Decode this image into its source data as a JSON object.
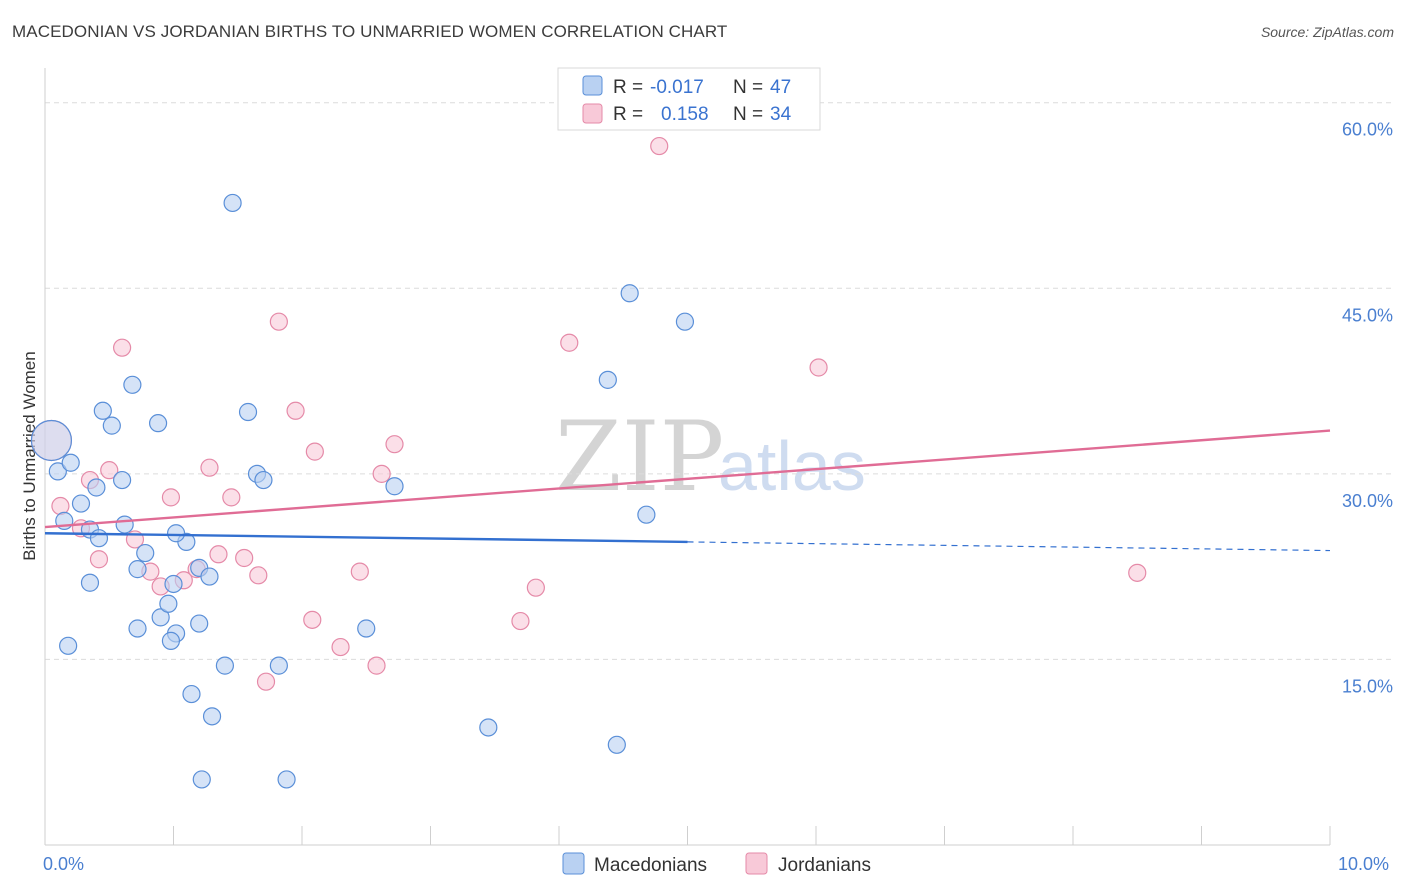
{
  "header": {
    "title": "MACEDONIAN VS JORDANIAN BIRTHS TO UNMARRIED WOMEN CORRELATION CHART",
    "source": "Source: ZipAtlas.com"
  },
  "watermark": {
    "zip": "ZIP",
    "atlas": "atlas"
  },
  "legend": {
    "macedonians": {
      "r_label": "R =",
      "r_value": "-0.017",
      "n_label": "N =",
      "n_value": "47"
    },
    "jordanians": {
      "r_label": "R =",
      "r_value": "0.158",
      "n_label": "N =",
      "n_value": "34"
    }
  },
  "colors": {
    "macedonians_fill": "#b9d1f2",
    "macedonians_stroke": "#5a8fd8",
    "macedonians_line": "#3370d0",
    "jordanians_fill": "#f8c9d8",
    "jordanians_stroke": "#e58aa8",
    "jordanians_line": "#e06c95",
    "tick_text": "#4a7fd0"
  },
  "chart_data": {
    "type": "scatter",
    "title": "MACEDONIAN VS JORDANIAN BIRTHS TO UNMARRIED WOMEN CORRELATION CHART",
    "xlabel": "",
    "ylabel": "Births to Unmarried Women",
    "xlim": [
      0,
      10
    ],
    "ylim": [
      0,
      62
    ],
    "x_tick_labels": [
      "0.0%",
      "10.0%"
    ],
    "y_ticks": [
      15,
      30,
      45,
      60
    ],
    "y_tick_labels": [
      "15.0%",
      "30.0%",
      "45.0%",
      "60.0%"
    ],
    "grid": true,
    "legend_position": "bottom",
    "series": [
      {
        "name": "Macedonians",
        "trend": {
          "x": [
            0,
            5.0
          ],
          "y": [
            25.2,
            24.5
          ],
          "dashed_to": [
            10.0,
            23.8
          ]
        },
        "points": [
          {
            "x": 0.05,
            "y": 32.7,
            "big": true
          },
          {
            "x": 0.1,
            "y": 30.2
          },
          {
            "x": 0.2,
            "y": 30.9
          },
          {
            "x": 0.28,
            "y": 27.6
          },
          {
            "x": 0.15,
            "y": 26.2
          },
          {
            "x": 0.4,
            "y": 28.9
          },
          {
            "x": 0.45,
            "y": 35.1
          },
          {
            "x": 0.52,
            "y": 33.9
          },
          {
            "x": 0.35,
            "y": 25.5
          },
          {
            "x": 0.42,
            "y": 24.8
          },
          {
            "x": 0.62,
            "y": 25.9
          },
          {
            "x": 0.68,
            "y": 37.2
          },
          {
            "x": 0.88,
            "y": 34.1
          },
          {
            "x": 0.78,
            "y": 23.6
          },
          {
            "x": 0.72,
            "y": 22.3
          },
          {
            "x": 0.9,
            "y": 18.4
          },
          {
            "x": 0.96,
            "y": 19.5
          },
          {
            "x": 1.02,
            "y": 17.1
          },
          {
            "x": 1.1,
            "y": 24.5
          },
          {
            "x": 1.0,
            "y": 21.1
          },
          {
            "x": 1.2,
            "y": 22.4
          },
          {
            "x": 1.2,
            "y": 17.9
          },
          {
            "x": 0.98,
            "y": 16.5
          },
          {
            "x": 1.14,
            "y": 12.2
          },
          {
            "x": 1.28,
            "y": 21.7
          },
          {
            "x": 1.4,
            "y": 14.5
          },
          {
            "x": 1.3,
            "y": 10.4
          },
          {
            "x": 1.46,
            "y": 51.9
          },
          {
            "x": 1.58,
            "y": 35.0
          },
          {
            "x": 1.65,
            "y": 30.0
          },
          {
            "x": 1.7,
            "y": 29.5
          },
          {
            "x": 1.82,
            "y": 14.5
          },
          {
            "x": 1.22,
            "y": 5.3
          },
          {
            "x": 1.88,
            "y": 5.3
          },
          {
            "x": 0.72,
            "y": 17.5
          },
          {
            "x": 0.35,
            "y": 21.2
          },
          {
            "x": 0.18,
            "y": 16.1
          },
          {
            "x": 1.02,
            "y": 25.2
          },
          {
            "x": 2.5,
            "y": 17.5
          },
          {
            "x": 2.72,
            "y": 29.0
          },
          {
            "x": 3.45,
            "y": 9.5
          },
          {
            "x": 4.38,
            "y": 37.6
          },
          {
            "x": 4.68,
            "y": 26.7
          },
          {
            "x": 4.98,
            "y": 42.3
          },
          {
            "x": 4.55,
            "y": 44.6
          },
          {
            "x": 4.45,
            "y": 8.1
          },
          {
            "x": 0.6,
            "y": 29.5
          }
        ]
      },
      {
        "name": "Jordanians",
        "trend": {
          "x": [
            0,
            10.0
          ],
          "y": [
            25.7,
            33.5
          ]
        },
        "points": [
          {
            "x": 0.05,
            "y": 32.7,
            "big": true
          },
          {
            "x": 0.12,
            "y": 27.4
          },
          {
            "x": 0.28,
            "y": 25.6
          },
          {
            "x": 0.35,
            "y": 29.5
          },
          {
            "x": 0.42,
            "y": 23.1
          },
          {
            "x": 0.5,
            "y": 30.3
          },
          {
            "x": 0.6,
            "y": 40.2
          },
          {
            "x": 0.7,
            "y": 24.7
          },
          {
            "x": 0.82,
            "y": 22.1
          },
          {
            "x": 0.9,
            "y": 20.9
          },
          {
            "x": 0.98,
            "y": 28.1
          },
          {
            "x": 1.08,
            "y": 21.4
          },
          {
            "x": 1.18,
            "y": 22.3
          },
          {
            "x": 1.28,
            "y": 30.5
          },
          {
            "x": 1.35,
            "y": 23.5
          },
          {
            "x": 1.45,
            "y": 28.1
          },
          {
            "x": 1.55,
            "y": 23.2
          },
          {
            "x": 1.66,
            "y": 21.8
          },
          {
            "x": 1.72,
            "y": 13.2
          },
          {
            "x": 1.82,
            "y": 42.3
          },
          {
            "x": 1.95,
            "y": 35.1
          },
          {
            "x": 2.08,
            "y": 18.2
          },
          {
            "x": 2.1,
            "y": 31.8
          },
          {
            "x": 2.3,
            "y": 16.0
          },
          {
            "x": 2.45,
            "y": 22.1
          },
          {
            "x": 2.58,
            "y": 14.5
          },
          {
            "x": 2.62,
            "y": 30.0
          },
          {
            "x": 2.72,
            "y": 32.4
          },
          {
            "x": 3.7,
            "y": 18.1
          },
          {
            "x": 3.82,
            "y": 20.8
          },
          {
            "x": 4.08,
            "y": 40.6
          },
          {
            "x": 4.78,
            "y": 56.5
          },
          {
            "x": 6.02,
            "y": 38.6
          },
          {
            "x": 8.5,
            "y": 22.0
          }
        ]
      }
    ]
  },
  "bottom_legend": {
    "macedonians": "Macedonians",
    "jordanians": "Jordanians"
  }
}
